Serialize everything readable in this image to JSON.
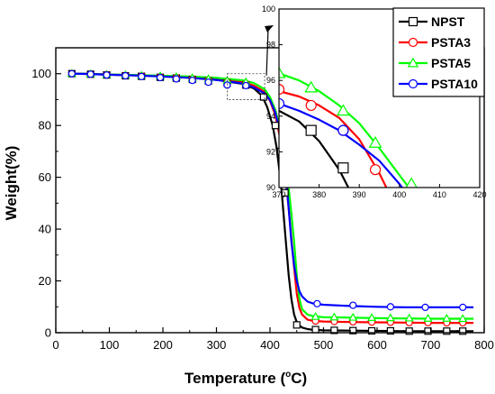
{
  "chart_data": [
    {
      "type": "line",
      "role": "main",
      "xlabel": "Temperature (",
      "xlabel_sup": "o",
      "xlabel_tail": "C)",
      "ylabel": "Weight(%)",
      "xlim": [
        0,
        800
      ],
      "ylim": [
        0,
        110
      ],
      "xticks": [
        0,
        100,
        200,
        300,
        400,
        500,
        600,
        700,
        800
      ],
      "yticks": [
        0,
        20,
        40,
        60,
        80,
        100
      ],
      "series": [
        {
          "name": "NPST",
          "color": "#000000",
          "marker": "square",
          "x": [
            30,
            60,
            100,
            150,
            200,
            250,
            300,
            350,
            370,
            385,
            395,
            405,
            412,
            418,
            422,
            426,
            430,
            435,
            440,
            445,
            450,
            455,
            460,
            470,
            480,
            500,
            550,
            600,
            650,
            700,
            780
          ],
          "y": [
            100,
            99.9,
            99.6,
            99.3,
            99,
            98.5,
            97.6,
            96,
            94.3,
            91.5,
            87,
            80,
            72,
            62,
            54,
            44,
            34,
            22,
            13,
            7,
            4,
            2.8,
            2,
            1.4,
            1.1,
            0.9,
            0.8,
            0.7,
            0.6,
            0.6,
            0.6
          ],
          "marker_x": [
            30,
            65,
            95,
            130,
            160,
            195,
            225,
            255,
            285,
            320,
            355,
            388,
            410,
            420,
            428,
            450,
            485,
            520,
            555,
            590,
            625,
            660,
            695,
            730,
            760
          ],
          "marker_y": [
            100,
            99.8,
            99.5,
            99.2,
            99,
            98.6,
            98.3,
            97.8,
            97.2,
            96.4,
            95.6,
            91,
            80,
            70,
            54,
            3,
            1.2,
            0.9,
            0.8,
            0.7,
            0.7,
            0.6,
            0.6,
            0.6,
            0.6
          ]
        },
        {
          "name": "PSTA3",
          "color": "#ff0000",
          "marker": "circle",
          "x": [
            30,
            60,
            100,
            150,
            200,
            250,
            300,
            350,
            370,
            390,
            400,
            410,
            420,
            428,
            434,
            440,
            445,
            450,
            455,
            460,
            470,
            480,
            500,
            550,
            600,
            650,
            700,
            780
          ],
          "y": [
            100,
            99.9,
            99.7,
            99.4,
            99.1,
            98.7,
            98,
            96.7,
            95.4,
            93,
            89.5,
            84,
            74,
            62,
            50,
            36,
            25,
            15,
            9.5,
            7,
            5,
            4.6,
            4.3,
            4.1,
            4,
            3.9,
            3.8,
            3.8
          ],
          "marker_x": [
            30,
            65,
            95,
            130,
            160,
            195,
            225,
            255,
            285,
            320,
            355,
            485,
            520,
            555,
            590,
            625,
            660,
            695,
            730,
            760
          ],
          "marker_y": [
            100,
            99.8,
            99.6,
            99.3,
            99.1,
            98.8,
            98.5,
            98,
            97.5,
            96.9,
            96.2,
            4.5,
            4.3,
            4.2,
            4.1,
            4,
            3.9,
            3.9,
            3.8,
            3.8
          ]
        },
        {
          "name": "PSTA5",
          "color": "#00ff00",
          "marker": "triangle",
          "x": [
            30,
            60,
            100,
            150,
            200,
            250,
            300,
            350,
            370,
            390,
            400,
            410,
            420,
            430,
            438,
            445,
            450,
            455,
            460,
            470,
            480,
            500,
            550,
            600,
            650,
            700,
            780
          ],
          "y": [
            100,
            99.9,
            99.7,
            99.5,
            99.2,
            98.9,
            98.4,
            97.4,
            96.4,
            94,
            91,
            86,
            78,
            65,
            50,
            35,
            22,
            13,
            9,
            7,
            6.4,
            6,
            5.8,
            5.6,
            5.5,
            5.4,
            5.4
          ],
          "marker_x": [
            30,
            65,
            95,
            130,
            160,
            195,
            225,
            255,
            285,
            320,
            355,
            485,
            520,
            555,
            590,
            625,
            660,
            695,
            730,
            760
          ],
          "marker_y": [
            100,
            99.9,
            99.7,
            99.5,
            99.3,
            99.1,
            98.8,
            98.4,
            98,
            97.4,
            96.8,
            6.2,
            6,
            5.9,
            5.8,
            5.7,
            5.6,
            5.5,
            5.5,
            5.4
          ]
        },
        {
          "name": "PSTA10",
          "color": "#0000ff",
          "marker": "circle",
          "x": [
            30,
            60,
            100,
            150,
            200,
            250,
            300,
            350,
            370,
            390,
            400,
            410,
            420,
            428,
            435,
            440,
            445,
            450,
            455,
            460,
            470,
            480,
            500,
            550,
            600,
            650,
            700,
            780
          ],
          "y": [
            100,
            99.9,
            99.6,
            99.3,
            98.9,
            98.4,
            97.6,
            96.2,
            94.7,
            92.4,
            89.8,
            85,
            76.5,
            64,
            48,
            35,
            26,
            20,
            16,
            14,
            12,
            11.3,
            10.8,
            10.3,
            10,
            9.8,
            9.8,
            9.8
          ],
          "marker_x": [
            30,
            65,
            95,
            130,
            160,
            195,
            225,
            255,
            285,
            320,
            355,
            425,
            488,
            555,
            625,
            690,
            760
          ],
          "marker_y": [
            100,
            99.8,
            99.5,
            99.2,
            98.9,
            98.5,
            98,
            97.4,
            96.7,
            95.6,
            95.4,
            76.5,
            11.2,
            10.6,
            10,
            9.8,
            9.8
          ]
        }
      ],
      "legend": {
        "position": "top-right",
        "entries": [
          "NPST",
          "PSTA3",
          "PSTA5",
          "PSTA10"
        ]
      },
      "zoom_box": {
        "x": [
          320,
          390
        ],
        "y": [
          90,
          100
        ]
      }
    },
    {
      "type": "line",
      "role": "inset",
      "xlim": [
        370,
        420
      ],
      "ylim": [
        90,
        100
      ],
      "xticks": [
        370,
        380,
        390,
        400,
        410,
        420
      ],
      "yticks": [
        90,
        92,
        94,
        96,
        98,
        100
      ],
      "series": [
        {
          "name": "NPST",
          "color": "#000000",
          "marker": "square",
          "x": [
            370,
            375,
            380,
            385,
            390
          ],
          "y": [
            94.3,
            93.7,
            92.6,
            91,
            88.8
          ],
          "marker_x": [
            378,
            386
          ],
          "marker_y": [
            93.2,
            91.1
          ]
        },
        {
          "name": "PSTA3",
          "color": "#ff0000",
          "marker": "circle",
          "x": [
            370,
            375,
            380,
            385,
            390,
            395,
            400
          ],
          "y": [
            95.4,
            95.1,
            94.6,
            93.9,
            92.7,
            90.8,
            88.5
          ],
          "marker_x": [
            370,
            378,
            386,
            394
          ],
          "marker_y": [
            95.5,
            94.6,
            93.2,
            91
          ]
        },
        {
          "name": "PSTA5",
          "color": "#00ff00",
          "marker": "triangle",
          "x": [
            370,
            375,
            380,
            385,
            390,
            395,
            400,
            404
          ],
          "y": [
            96.4,
            96,
            95.4,
            94.6,
            93.6,
            92.2,
            90.7,
            89.5
          ],
          "marker_x": [
            370,
            378,
            386,
            394,
            403
          ],
          "marker_y": [
            96.4,
            95.6,
            94.3,
            92.5,
            90.2
          ]
        },
        {
          "name": "PSTA10",
          "color": "#0000ff",
          "marker": "circle",
          "x": [
            370,
            375,
            380,
            385,
            390,
            395,
            400,
            404
          ],
          "y": [
            94.7,
            94.3,
            93.8,
            93.2,
            92.4,
            91.5,
            90.2,
            89
          ],
          "marker_x": [
            370,
            386
          ],
          "marker_y": [
            94.7,
            93.2
          ]
        }
      ]
    }
  ]
}
